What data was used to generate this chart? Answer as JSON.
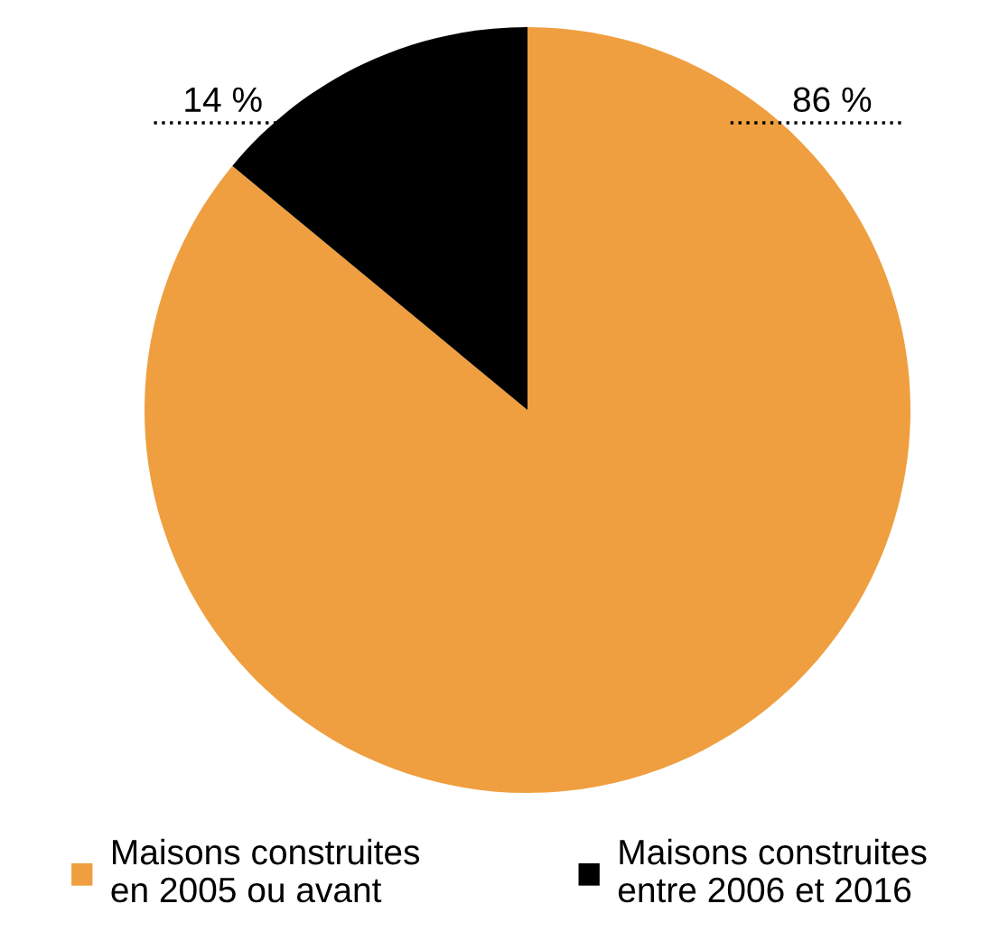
{
  "chart_data": {
    "type": "pie",
    "categories": [
      "Maisons construites\nen 2005 ou avant",
      "Maisons construites\nentre 2006 et 2016"
    ],
    "values": [
      86,
      14
    ],
    "colors": [
      "#ef9f3f",
      "#000000"
    ],
    "value_labels": [
      "86 %",
      "14 %"
    ],
    "legend": "bottom"
  }
}
